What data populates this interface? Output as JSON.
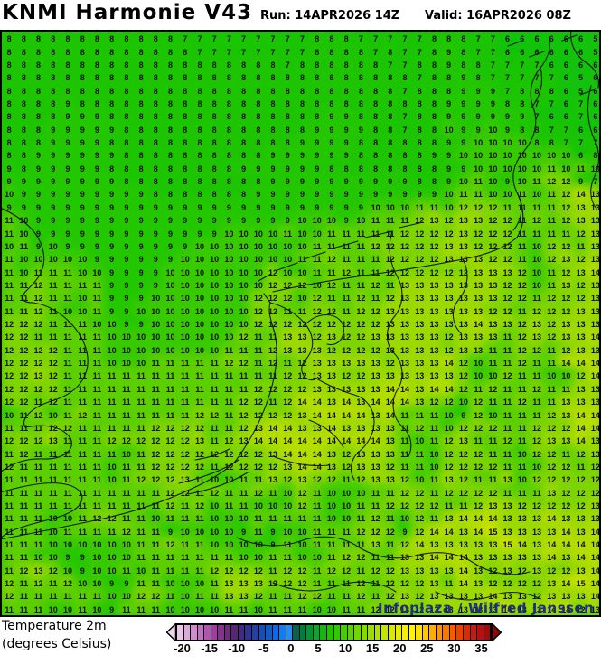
{
  "header": {
    "title": "KNMI Harmonie V43",
    "run": "Run: 14APR2026 14Z",
    "valid": "Valid: 16APR2026 08Z"
  },
  "legend": {
    "line1": "Temperature 2m",
    "line2": "(degrees Celsius)"
  },
  "watermark": {
    "text": "Infoplaza / Wilfred Janssen",
    "color": "#1c2e80"
  },
  "colorbar": {
    "min": -21.25,
    "max": 36.25,
    "tick_labels": [
      "-20",
      "-15",
      "-10",
      "-5",
      "0",
      "5",
      "10",
      "15",
      "20",
      "25",
      "30",
      "35"
    ],
    "arrow_left_color": "#eed8ec",
    "arrow_right_color": "#8f0808",
    "segments": [
      "#e8c6e6",
      "#dbaad9",
      "#cd8ecb",
      "#bf72bd",
      "#b056b0",
      "#9c3f9f",
      "#87308f",
      "#702a80",
      "#582672",
      "#432a7e",
      "#31338f",
      "#2340a3",
      "#184eb8",
      "#0f5ccd",
      "#0b6cdf",
      "#0f7eef",
      "#2090f8",
      "#076248",
      "#077a3e",
      "#089234",
      "#09a827",
      "#12b714",
      "#1fc303",
      "#2fc900",
      "#44cd00",
      "#5ad100",
      "#71d500",
      "#88d900",
      "#9edd00",
      "#b2e000",
      "#c5e400",
      "#d8e800",
      "#e8ec00",
      "#f4f000",
      "#fdf400",
      "#fde200",
      "#fcc900",
      "#fbaf00",
      "#f99500",
      "#f67a00",
      "#f25e00",
      "#ea4200",
      "#dd2a06",
      "#cb1a0c",
      "#b71010",
      "#a00b0b"
    ]
  },
  "map": {
    "base_color": "#1dc501",
    "number_color": "#101010",
    "coastline_color": "#000000",
    "field_color_stops": [
      {
        "t": 0,
        "c": "#12c20b"
      },
      {
        "t": 7,
        "c": "#19c403"
      },
      {
        "t": 8,
        "c": "#1dc501"
      },
      {
        "t": 9,
        "c": "#23c700"
      },
      {
        "t": 10,
        "c": "#38ca00"
      },
      {
        "t": 11,
        "c": "#5ccf00"
      },
      {
        "t": 12,
        "c": "#7ed400"
      },
      {
        "t": 13,
        "c": "#9bd900"
      },
      {
        "t": 14,
        "c": "#b4dd00"
      },
      {
        "t": 15,
        "c": "#cfe300"
      }
    ]
  },
  "chart_data": {
    "type": "heatmap",
    "title": "KNMI Harmonie V43 2m temperature",
    "unit": "degrees Celsius",
    "cols": 41,
    "rows": 45,
    "values": [
      "8 8 8 8 8 8 8 8 8 8 8 8 7 7 7 7 7 7 7 7 7 8 8 8 7 7 7 7 7 8 8 8 7 7 6 6 6 6 6 6 5",
      "8 8 8 8 8 8 8 8 8 8 8 8 8 7 7 7 7 7 7 7 7 8 8 8 8 7 8 7 7 8 9 8 7 7 6 6 6 6 6 6 5",
      "8 8 8 8 8 8 8 8 8 8 8 8 8 8 8 8 8 8 8 7 8 8 8 8 8 8 7 7 8 8 9 8 8 7 7 7 7 6 6 6 6",
      "8 8 8 8 8 8 8 8 8 8 8 8 8 8 8 8 8 8 8 8 8 8 8 8 8 8 8 8 7 8 8 9 8 7 7 7 7 7 6 5 6",
      "8 8 8 8 8 8 8 8 8 8 8 8 8 8 8 8 8 8 8 8 8 8 8 8 8 8 8 7 8 8 8 9 9 9 7 8 8 8 6 5 6",
      "8 8 8 8 9 8 8 8 8 8 8 8 8 8 8 8 8 8 8 8 8 8 8 8 8 8 8 8 8 8 9 9 9 9 8 8 7 7 6 7 6",
      "8 8 8 8 9 9 9 8 8 8 8 8 8 8 8 8 8 8 8 8 8 8 9 9 8 8 8 7 8 8 9 9 9 9 9 9 7 6 6 7 6",
      "8 8 8 9 9 9 9 9 8 8 8 8 8 8 8 8 8 8 8 8 8 9 9 9 9 8 8 7 8 8 10 9 9 10 9 8 8 7 7 6 6",
      "8 8 8 9 9 9 9 8 8 8 8 8 8 8 8 8 8 8 8 8 9 9 9 9 8 8 8 8 8 8 9 9 10 10 10 10 8 8 7 7 7",
      "8 8 9 9 9 9 9 9 8 8 8 8 8 8 8 8 8 8 9 9 9 9 9 9 8 8 8 8 8 9 9 10 10 10 10 10 10 10 10 6 8",
      "9 8 9 9 9 9 9 8 8 8 8 8 8 8 8 8 9 9 9 9 9 9 8 8 8 8 8 8 8 8 9 9 10 10 10 10 10 11 10 11 10",
      "9 9 9 9 9 9 9 9 8 8 8 8 8 8 8 8 8 8 9 9 9 9 9 9 9 9 9 9 8 8 9 10 11 10 9 10 11 12 12 9 7",
      "10 9 9 9 9 9 9 9 9 9 8 8 8 8 8 8 8 9 9 9 9 9 9 9 9 9 9 9 9 9 10 11 11 10 10 11 10 11 12 14 13",
      "9 9 9 9 9 9 9 9 9 9 9 9 9 9 9 9 9 9 9 9 9 9 9 9 9 10 10 10 11 11 10 12 12 12 11 11 11 11 12 13 13",
      "11 10 9 9 9 9 9 9 9 9 9 9 9 9 9 9 9 9 9 9 10 10 10 9 10 11 11 11 12 13 12 13 13 12 12 11 12 11 12 13 13",
      "11 10 9 9 9 9 9 9 9 9 9 9 9 9 9 10 10 10 10 11 10 10 11 11 11 11 11 12 12 12 12 13 12 12 12 11 11 11 11 12 13",
      "10 11 9 10 9 9 9 9 9 9 9 9 9 10 10 10 10 10 10 10 10 11 11 11 11 12 12 12 12 12 13 13 12 12 12 11 10 12 12 11 13",
      "11 10 10 10 10 10 9 9 9 9 9 9 10 10 10 10 10 10 10 10 11 11 12 11 11 11 12 12 12 12 13 13 13 12 12 11 10 12 13 12 13",
      "11 10 11 11 11 10 10 9 9 9 9 10 10 10 10 10 10 10 12 10 10 11 11 12 11 11 12 12 12 12 12 12 13 13 13 12 10 11 12 13 14",
      "11 11 12 11 11 11 11 9 9 9 9 10 10 10 10 10 10 10 12 12 12 10 12 11 11 12 11 13 13 13 13 13 13 13 12 12 10 11 13 12 13",
      "11 11 12 11 11 10 11 9 9 9 10 10 10 10 10 10 10 12 12 12 10 12 11 11 12 11 12 13 13 13 13 13 13 13 12 12 11 12 12 12 13",
      "11 11 12 11 10 10 11 9 9 10 10 10 10 10 10 10 10 12 12 11 11 12 12 11 12 12 13 13 13 13 13 13 13 12 12 11 12 12 12 13 13",
      "12 12 12 11 11 11 10 10 9 9 10 10 10 10 10 10 10 12 12 12 12 12 12 12 12 12 13 13 13 13 13 13 14 13 13 12 13 12 13 13 13",
      "12 12 11 11 11 11 11 10 10 10 10 10 10 10 10 10 12 11 11 13 13 12 13 12 12 13 13 13 13 13 12 13 13 13 11 12 13 12 13 13 14",
      "12 12 12 12 11 11 11 10 10 10 10 10 10 10 10 11 11 11 12 13 13 13 12 12 12 12 13 13 13 13 12 13 13 11 11 12 12 11 12 13 13",
      "12 12 12 12 11 11 11 10 10 10 11 11 11 11 11 12 12 11 12 11 12 13 13 13 13 13 12 13 13 13 14 12 10 11 11 12 11 11 14 14 14",
      "12 12 13 12 11 11 11 11 11 11 11 11 11 11 11 11 11 11 11 12 12 13 13 12 12 13 13 13 13 13 13 12 10 10 12 11 11 10 10 12 14",
      "12 12 12 12 11 11 11 11 11 11 11 11 11 11 11 11 11 12 12 12 12 13 13 13 13 13 14 14 13 14 14 12 11 12 11 11 12 11 11 13 13",
      "12 12 11 12 11 11 11 11 11 11 11 11 11 11 11 11 12 12 11 12 14 14 13 14 13 14 14 14 13 12 12 10 12 11 11 12 11 11 13 13 13",
      "10 11 12 10 11 12 11 11 11 11 11 11 11 12 12 11 12 12 12 12 13 14 14 14 14 13 14 11 11 11 10 9 12 10 11 11 11 12 13 14 14",
      "11 11 11 12 12 11 11 11 11 11 12 12 12 12 11 11 12 13 14 14 13 13 14 13 13 13 13 11 12 11 10 12 12 12 11 11 12 12 12 14 14",
      "12 12 12 13 11 11 11 12 12 12 12 12 12 13 11 12 13 14 14 14 14 14 14 14 14 14 13 11 10 11 12 13 11 11 12 11 12 13 13 14 13",
      "11 12 11 11 11 11 11 11 10 11 12 12 12 12 12 12 12 12 13 14 14 14 13 12 13 13 13 11 11 10 12 12 12 11 11 10 12 12 11 12 13",
      "12 11 11 11 11 11 11 10 11 11 12 12 12 12 11 12 12 12 12 13 14 14 13 12 13 13 12 11 11 10 12 12 12 12 11 11 10 12 12 11 12",
      "11 11 11 11 11 11 11 10 11 12 12 12 13 11 10 10 11 11 13 12 13 12 12 11 12 13 13 12 10 11 13 12 11 11 13 10 12 12 12 12 12",
      "11 11 11 11 11 11 11 11 11 11 11 12 12 11 12 11 11 12 11 10 12 11 10 10 10 11 11 12 12 11 12 12 12 12 11 11 11 13 12 12 12",
      "11 11 11 11 11 11 11 11 11 11 11 12 11 12 10 11 11 10 10 10 12 11 10 10 11 11 12 12 12 12 11 11 12 13 13 12 12 12 12 12 13",
      "11 11 11 10 10 11 12 12 11 11 10 11 11 11 10 10 10 11 11 11 11 11 10 10 11 12 11 10 12 11 13 14 14 14 13 13 13 14 13 13 13",
      "11 11 11 10 11 11 11 11 12 11 11 9 10 10 10 10 9 11 9 10 10 11 11 11 12 12 12 9 12 14 14 13 14 15 13 13 13 13 14 13 14",
      "11 11 11 10 10 10 10 10 10 11 11 12 11 11 10 10 10 10 9 11 10 11 11 11 11 13 11 12 14 13 13 13 13 13 15 14 13 14 14 14 14",
      "11 11 10 10 9 9 10 10 10 11 11 11 11 11 11 11 10 10 11 11 10 10 11 12 12 11 11 13 13 14 14 14 13 13 13 13 13 14 13 14 14",
      "11 12 13 12 10 9 10 10 11 10 11 11 11 11 12 12 12 12 11 12 12 11 12 12 11 12 12 13 13 13 13 14 13 12 13 12 13 12 12 13 14",
      "12 11 12 11 12 10 10 9 9 11 11 10 10 10 11 13 13 13 12 12 12 11 11 11 12 11 12 12 12 13 11 14 13 12 12 12 12 13 14 15 14",
      "12 11 11 11 11 11 11 10 10 12 12 11 10 11 11 13 13 12 11 11 12 12 11 11 12 11 12 13 12 13 13 13 13 14 13 13 12 13 13 13 14",
      "11 11 11 10 10 11 10 9 11 11 11 10 10 10 10 11 11 10 11 11 11 10 10 11 11 12 12 13 12 13 13 13 13 13 14 13 13 14 14 12 13"
    ]
  }
}
